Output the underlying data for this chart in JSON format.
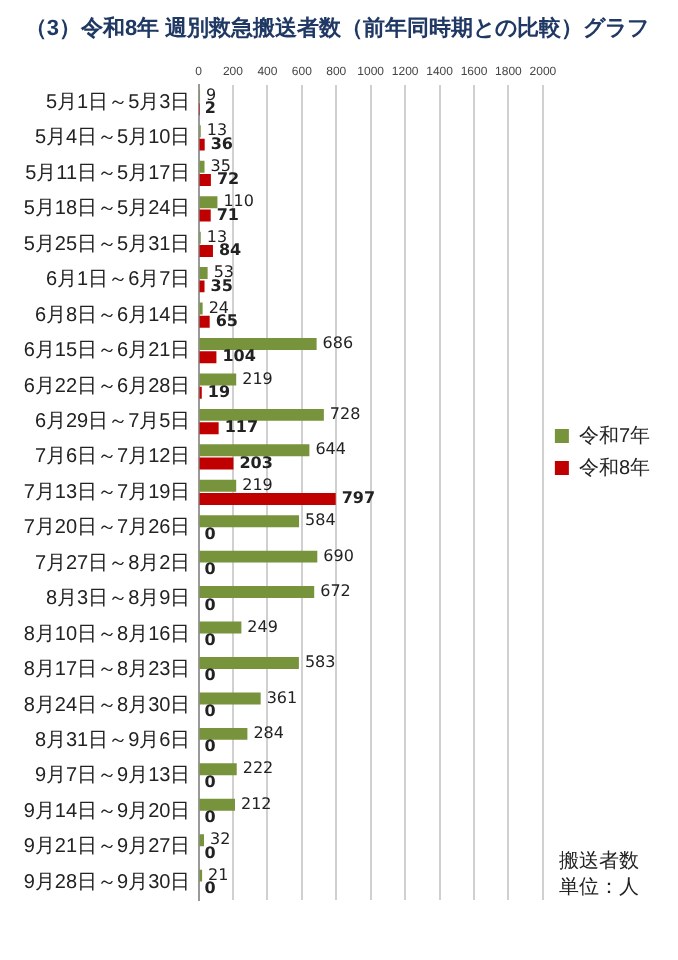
{
  "chart_data": {
    "type": "bar",
    "orientation": "horizontal",
    "title": "（3）令和8年 週別救急搬送者数（前年同時期との比較）グラフ",
    "categories": [
      "5月1日～5月3日",
      "5月4日～5月10日",
      "5月11日～5月17日",
      "5月18日～5月24日",
      "5月25日～5月31日",
      "6月1日～6月7日",
      "6月8日～6月14日",
      "6月15日～6月21日",
      "6月22日～6月28日",
      "6月29日～7月5日",
      "7月6日～7月12日",
      "7月13日～7月19日",
      "7月20日～7月26日",
      "7月27日～8月2日",
      "8月3日～8月9日",
      "8月10日～8月16日",
      "8月17日～8月23日",
      "8月24日～8月30日",
      "8月31日～9月6日",
      "9月7日～9月13日",
      "9月14日～9月20日",
      "9月21日～9月27日",
      "9月28日～9月30日"
    ],
    "series": [
      {
        "name": "令和7年",
        "color": "#77933c",
        "values": [
          9,
          13,
          35,
          110,
          13,
          53,
          24,
          686,
          219,
          728,
          644,
          219,
          584,
          690,
          672,
          249,
          583,
          361,
          284,
          222,
          212,
          32,
          21
        ]
      },
      {
        "name": "令和8年",
        "color": "#c00000",
        "values": [
          2,
          36,
          72,
          71,
          84,
          35,
          65,
          104,
          19,
          117,
          203,
          797,
          0,
          0,
          0,
          0,
          0,
          0,
          0,
          0,
          0,
          0,
          0
        ]
      }
    ],
    "xlim": [
      0,
      2000
    ],
    "xticks": [
      0,
      200,
      400,
      600,
      800,
      1000,
      1200,
      1400,
      1600,
      1800,
      2000
    ],
    "grid": "x",
    "legend": "right",
    "data_labels": true,
    "annotations": [
      "搬送者数",
      "単位：人"
    ]
  }
}
